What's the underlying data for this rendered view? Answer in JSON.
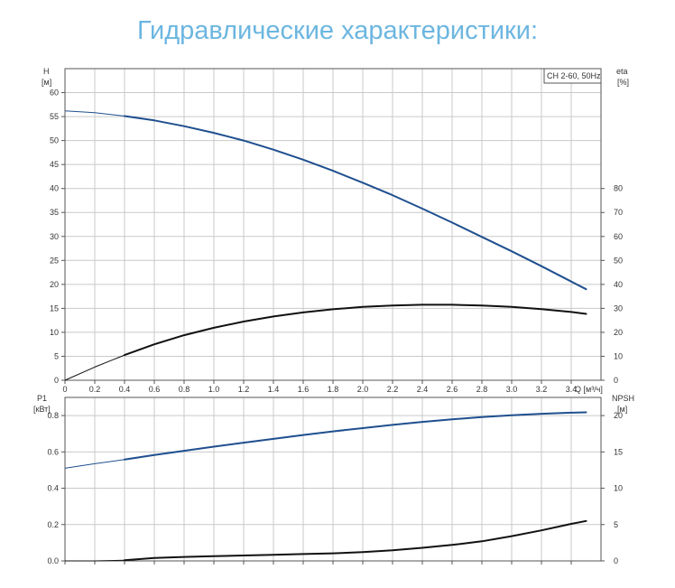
{
  "page": {
    "title": "Гидравлические характеристики:"
  },
  "colors": {
    "title": "#6cb6e0",
    "grid": "#c9c9c9",
    "axis": "#555555",
    "blue_curve": "#1f4f8f",
    "black_curve": "#111111"
  },
  "chart_data": [
    {
      "type": "line",
      "legend": "CH 2-60, 50Hz",
      "legend_placement": "top-right",
      "grid": true,
      "x": {
        "label": "Q [м³/ч]",
        "range": [
          0,
          3.6
        ],
        "ticks": [
          "0",
          "0.2",
          "0.4",
          "0.6",
          "0.8",
          "1.0",
          "1.2",
          "1.4",
          "1.6",
          "1.8",
          "2.0",
          "2.2",
          "2.4",
          "2.6",
          "2.8",
          "3.0",
          "3.2",
          "3.4"
        ]
      },
      "y_left": {
        "label": "H",
        "unit": "[м]",
        "range": [
          0,
          65
        ],
        "ticks": [
          "0",
          "5",
          "10",
          "15",
          "20",
          "25",
          "30",
          "35",
          "40",
          "45",
          "50",
          "55",
          "60"
        ]
      },
      "y_right": {
        "label": "eta",
        "unit": "[%]",
        "range": [
          0,
          130
        ],
        "ticks": [
          "0",
          "10",
          "20",
          "30",
          "40",
          "50",
          "60",
          "70",
          "80"
        ]
      },
      "series": [
        {
          "axis": "left",
          "color": "#1f4f8f",
          "x": [
            0,
            0.2,
            0.4,
            0.6,
            0.8,
            1.0,
            1.2,
            1.4,
            1.6,
            1.8,
            2.0,
            2.2,
            2.4,
            2.6,
            2.8,
            3.0,
            3.2,
            3.4,
            3.5
          ],
          "y": [
            56.2,
            55.8,
            55.1,
            54.2,
            53.0,
            51.6,
            50.0,
            48.1,
            46.0,
            43.7,
            41.2,
            38.6,
            35.8,
            32.9,
            29.9,
            26.9,
            23.8,
            20.6,
            19.0
          ]
        },
        {
          "axis": "right",
          "color": "#111111",
          "x": [
            0,
            0.2,
            0.4,
            0.6,
            0.8,
            1.0,
            1.2,
            1.4,
            1.6,
            1.8,
            2.0,
            2.2,
            2.4,
            2.6,
            2.8,
            3.0,
            3.2,
            3.4,
            3.5
          ],
          "y": [
            0,
            5.5,
            10.5,
            15.0,
            18.8,
            21.9,
            24.5,
            26.6,
            28.3,
            29.6,
            30.6,
            31.2,
            31.5,
            31.5,
            31.2,
            30.6,
            29.7,
            28.5,
            27.7
          ]
        }
      ]
    },
    {
      "type": "line",
      "grid": true,
      "x": {
        "range": [
          0,
          3.6
        ]
      },
      "y_left": {
        "label": "P1",
        "unit": "[кВт]",
        "range": [
          0,
          0.9
        ],
        "ticks": [
          "0.0",
          "0.2",
          "0.4",
          "0.6",
          "0.8"
        ]
      },
      "y_right": {
        "label": "NPSH",
        "unit": "[м]",
        "range": [
          0,
          22.5
        ],
        "ticks": [
          "0",
          "5",
          "10",
          "15",
          "20"
        ]
      },
      "series": [
        {
          "axis": "left",
          "color": "#1f4f8f",
          "x": [
            0,
            0.2,
            0.4,
            0.6,
            0.8,
            1.0,
            1.2,
            1.4,
            1.6,
            1.8,
            2.0,
            2.2,
            2.4,
            2.6,
            2.8,
            3.0,
            3.2,
            3.4,
            3.5
          ],
          "y": [
            0.51,
            0.535,
            0.558,
            0.583,
            0.606,
            0.629,
            0.651,
            0.672,
            0.693,
            0.713,
            0.731,
            0.749,
            0.765,
            0.779,
            0.792,
            0.802,
            0.81,
            0.816,
            0.818
          ]
        },
        {
          "axis": "right",
          "color": "#111111",
          "x": [
            0,
            0.2,
            0.4,
            0.6,
            0.8,
            1.0,
            1.2,
            1.4,
            1.6,
            1.8,
            2.0,
            2.2,
            2.4,
            2.6,
            2.8,
            3.0,
            3.2,
            3.4,
            3.5
          ],
          "y": [
            0,
            0,
            0.1,
            0.4,
            0.55,
            0.65,
            0.75,
            0.85,
            0.95,
            1.05,
            1.2,
            1.45,
            1.8,
            2.2,
            2.7,
            3.4,
            4.2,
            5.1,
            5.5
          ]
        }
      ]
    }
  ]
}
